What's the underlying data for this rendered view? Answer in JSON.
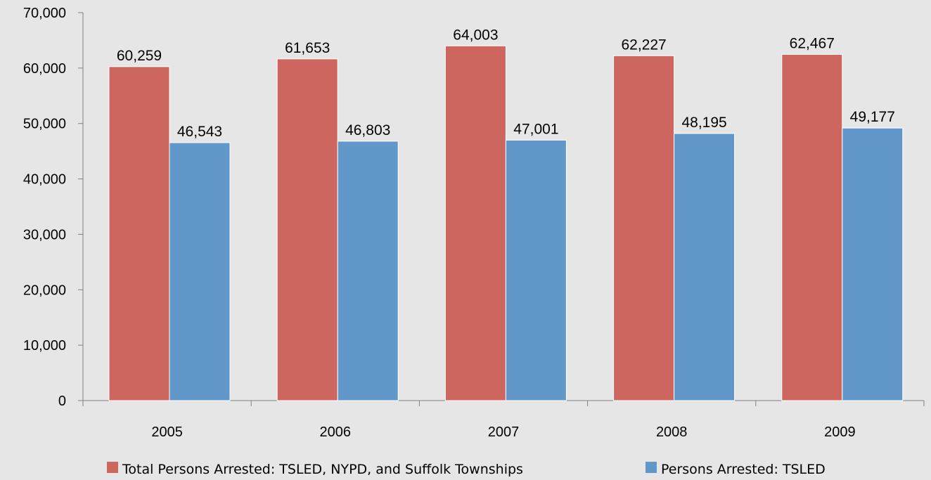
{
  "chart_data": {
    "type": "bar",
    "title": "",
    "xlabel": "",
    "ylabel": "",
    "categories": [
      "2005",
      "2006",
      "2007",
      "2008",
      "2009"
    ],
    "series": [
      {
        "name": "Total Persons Arrested: TSLED, NYPD, and Suffolk Townships",
        "values": [
          60259,
          61653,
          64003,
          62227,
          62467
        ],
        "labels": [
          "60,259",
          "61,653",
          "64,003",
          "62,227",
          "62,467"
        ],
        "color": "#cd665f"
      },
      {
        "name": "Persons Arrested: TSLED",
        "values": [
          46543,
          46803,
          47001,
          48195,
          49177
        ],
        "labels": [
          "46,543",
          "46,803",
          "47,001",
          "48,195",
          "49,177"
        ],
        "color": "#6197c9"
      }
    ],
    "ylim": [
      0,
      70000
    ],
    "yticks": [
      "0",
      "10,000",
      "20,000",
      "30,000",
      "40,000",
      "50,000",
      "60,000",
      "70,000"
    ],
    "grid": false,
    "legend_position": "bottom",
    "background_color": "#e6e6e6"
  }
}
